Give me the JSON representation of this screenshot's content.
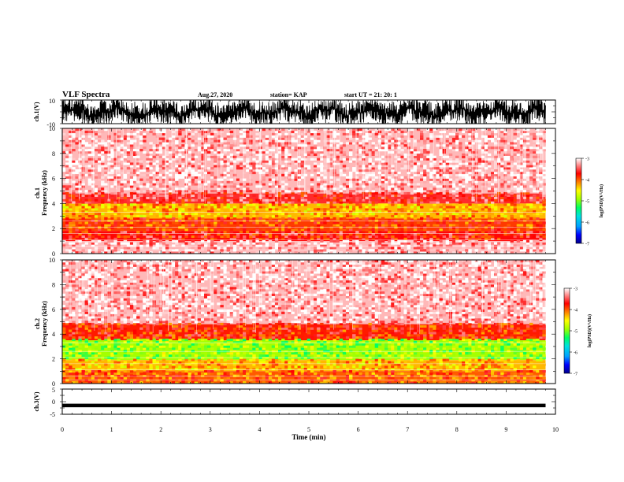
{
  "header": {
    "title": "VLF Spectra",
    "date": "Aug.27, 2020",
    "station": "station= KAP",
    "start": "start UT =  21: 20: 1"
  },
  "chart_data": [
    {
      "id": "ch1_waveform",
      "type": "line",
      "ylabel": "ch.1(V)",
      "ylim": [
        -10,
        10
      ],
      "yticks": [
        "10",
        "-10"
      ],
      "xlim": [
        0,
        10
      ]
    },
    {
      "id": "ch1_spectrogram",
      "type": "heatmap",
      "ylabel": "ch.1\nFrequency (kHz)",
      "ylim": [
        0,
        10
      ],
      "yticks": [
        "0",
        "2",
        "4",
        "6",
        "8",
        "10"
      ],
      "xlim": [
        0,
        10
      ],
      "data_end_min": 9.8,
      "colorbar": {
        "label": "log(PSD)(V²/Hz)",
        "range": [
          -7,
          -3
        ],
        "ticks": [
          "-3",
          "-4",
          "-5",
          "-6",
          "-7"
        ]
      },
      "bands": [
        {
          "from_khz": 4.8,
          "to_khz": 10.0,
          "log_psd": -3.2
        },
        {
          "from_khz": 4.0,
          "to_khz": 4.8,
          "log_psd": -3.6
        },
        {
          "from_khz": 2.8,
          "to_khz": 4.0,
          "log_psd": -4.3
        },
        {
          "from_khz": 1.8,
          "to_khz": 2.8,
          "log_psd": -3.9
        },
        {
          "from_khz": 1.0,
          "to_khz": 1.8,
          "log_psd": -3.7
        },
        {
          "from_khz": 0.0,
          "to_khz": 1.0,
          "log_psd": -3.2
        }
      ]
    },
    {
      "id": "ch2_spectrogram",
      "type": "heatmap",
      "ylabel": "ch.2\nFrequency (kHz)",
      "ylim": [
        0,
        10
      ],
      "yticks": [
        "0",
        "2",
        "4",
        "6",
        "8",
        "10"
      ],
      "xlim": [
        0,
        10
      ],
      "data_end_min": 9.8,
      "colorbar": {
        "label": "log(PSD)(V²/Hz)",
        "range": [
          -7,
          -3
        ],
        "ticks": [
          "-3",
          "-4",
          "-5",
          "-6",
          "-7"
        ]
      },
      "bands": [
        {
          "from_khz": 4.8,
          "to_khz": 10.0,
          "log_psd": -3.2
        },
        {
          "from_khz": 3.5,
          "to_khz": 4.8,
          "log_psd": -3.8
        },
        {
          "from_khz": 1.9,
          "to_khz": 3.5,
          "log_psd": -4.9
        },
        {
          "from_khz": 1.0,
          "to_khz": 1.9,
          "log_psd": -4.3
        },
        {
          "from_khz": 0.0,
          "to_khz": 1.0,
          "log_psd": -4.0
        }
      ]
    },
    {
      "id": "ch3_waveform",
      "type": "line",
      "ylabel": "ch.3(V)",
      "ylim": [
        -5,
        5
      ],
      "yticks": [
        "5",
        "0",
        "-5"
      ],
      "xlim": [
        0,
        10
      ],
      "xlabel": "Time (min)",
      "xticks": [
        "0",
        "1",
        "2",
        "3",
        "4",
        "5",
        "6",
        "7",
        "8",
        "9",
        "10"
      ]
    }
  ],
  "colors": {
    "colormap": [
      "#00008b",
      "#0000ff",
      "#00a0ff",
      "#00e0e0",
      "#00ff60",
      "#a0ff00",
      "#ffff00",
      "#ff8000",
      "#ff0000",
      "#ffffff"
    ]
  }
}
